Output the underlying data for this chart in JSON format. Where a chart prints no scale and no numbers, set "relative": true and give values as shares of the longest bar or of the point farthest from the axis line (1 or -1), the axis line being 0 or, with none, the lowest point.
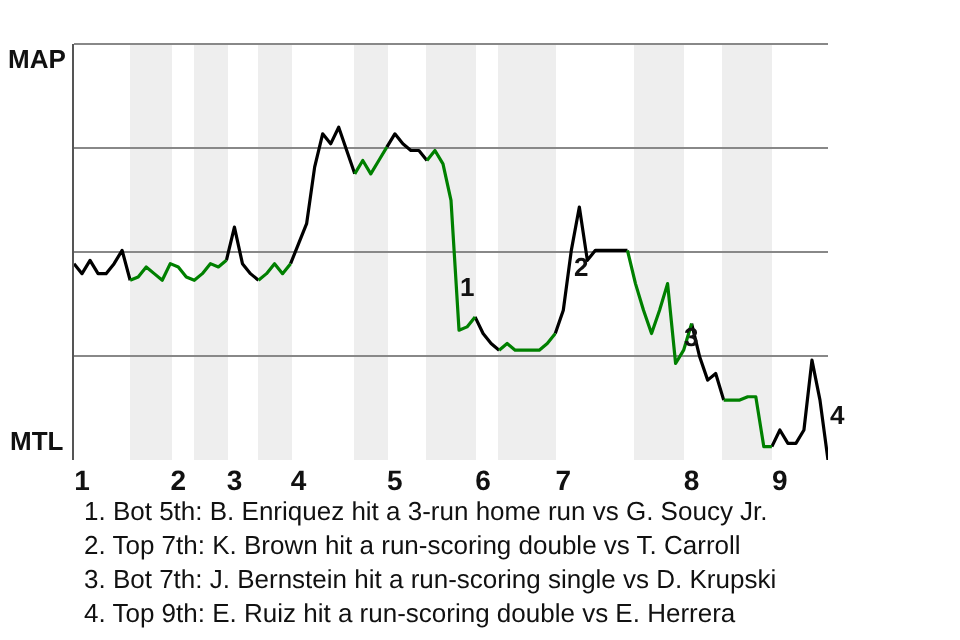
{
  "chart_data": {
    "type": "line",
    "relative": true,
    "categories": [
      null,
      "1",
      null,
      null,
      null,
      null,
      null,
      null,
      null,
      null,
      null,
      null,
      null,
      "2",
      null,
      null,
      null,
      null,
      null,
      null,
      "3",
      null,
      null,
      null,
      null,
      null,
      null,
      null,
      "4",
      null,
      null,
      null,
      null,
      null,
      null,
      null,
      null,
      null,
      null,
      null,
      "5",
      null,
      null,
      null,
      null,
      null,
      null,
      null,
      null,
      null,
      null,
      "6",
      null,
      null,
      null,
      null,
      null,
      null,
      null,
      null,
      null,
      "7",
      null,
      null,
      null,
      null,
      null,
      null,
      null,
      null,
      null,
      null,
      null,
      null,
      null,
      null,
      null,
      "8",
      null,
      null,
      null,
      null,
      null,
      null,
      null,
      null,
      null,
      null,
      "9",
      null,
      null,
      null,
      null,
      null,
      null
    ],
    "grid": "y",
    "marker": "none",
    "line_style": "solid",
    "series": [
      {
        "color": "#000000",
        "values": [
          0.59,
          0.56,
          0.6,
          0.56,
          0.56,
          0.59,
          0.63,
          0.54,
          null,
          null,
          null,
          null,
          null,
          null,
          null,
          null,
          null,
          null,
          null,
          0.6,
          0.7,
          0.59,
          0.56,
          0.54,
          null,
          null,
          null,
          0.59,
          0.65,
          0.71,
          0.88,
          0.98,
          0.95,
          1,
          0.93,
          0.86,
          null,
          null,
          null,
          0.94,
          0.98,
          0.95,
          0.93,
          0.93,
          0.9,
          null,
          null,
          null,
          null,
          null,
          0.43,
          0.38,
          0.35,
          0.33,
          null,
          null,
          null,
          null,
          null,
          null,
          0.38,
          0.45,
          0.63,
          0.76,
          0.6,
          0.63,
          0.63,
          0.63,
          0.63,
          0.63,
          null,
          null,
          null,
          null,
          null,
          null,
          null,
          0.41,
          0.31,
          0.24,
          0.26,
          0.18,
          null,
          null,
          null,
          null,
          null,
          0.04,
          0.09,
          0.05,
          0.05,
          0.09,
          0.3,
          0.18,
          0
        ]
      },
      {
        "color": "#008000",
        "values": [
          null,
          null,
          null,
          null,
          null,
          null,
          null,
          0.54,
          0.55,
          0.58,
          0.56,
          0.54,
          0.59,
          0.58,
          0.55,
          0.54,
          0.56,
          0.59,
          0.58,
          0.6,
          null,
          null,
          null,
          0.54,
          0.56,
          0.59,
          0.56,
          0.59,
          null,
          null,
          null,
          null,
          null,
          null,
          null,
          0.86,
          0.9,
          0.86,
          0.9,
          0.94,
          null,
          null,
          null,
          null,
          0.9,
          0.93,
          0.89,
          0.78,
          0.39,
          0.4,
          0.43,
          null,
          null,
          0.33,
          0.35,
          0.33,
          0.33,
          0.33,
          0.33,
          0.35,
          0.38,
          null,
          null,
          null,
          null,
          null,
          null,
          null,
          null,
          0.63,
          0.53,
          0.45,
          0.38,
          0.45,
          0.53,
          0.29,
          0.33,
          0.41,
          null,
          null,
          null,
          0.18,
          0.18,
          0.18,
          0.19,
          0.19,
          0.04,
          0.04,
          null,
          null,
          null,
          null,
          null,
          null,
          null
        ]
      }
    ],
    "annotations": [
      "MAP",
      "MTL",
      "1",
      "2",
      "3",
      "4",
      "1. Bot 5th: B. Enriquez hit a 3-run home run vs G. Soucy Jr.",
      "2. Top 7th: K. Brown hit a run-scoring double vs T. Carroll",
      "3. Bot 7th: J. Bernstein hit a run-scoring single vs D. Krupski",
      "4. Top 9th: E. Ruiz hit a run-scoring double vs E. Herrera"
    ]
  }
}
